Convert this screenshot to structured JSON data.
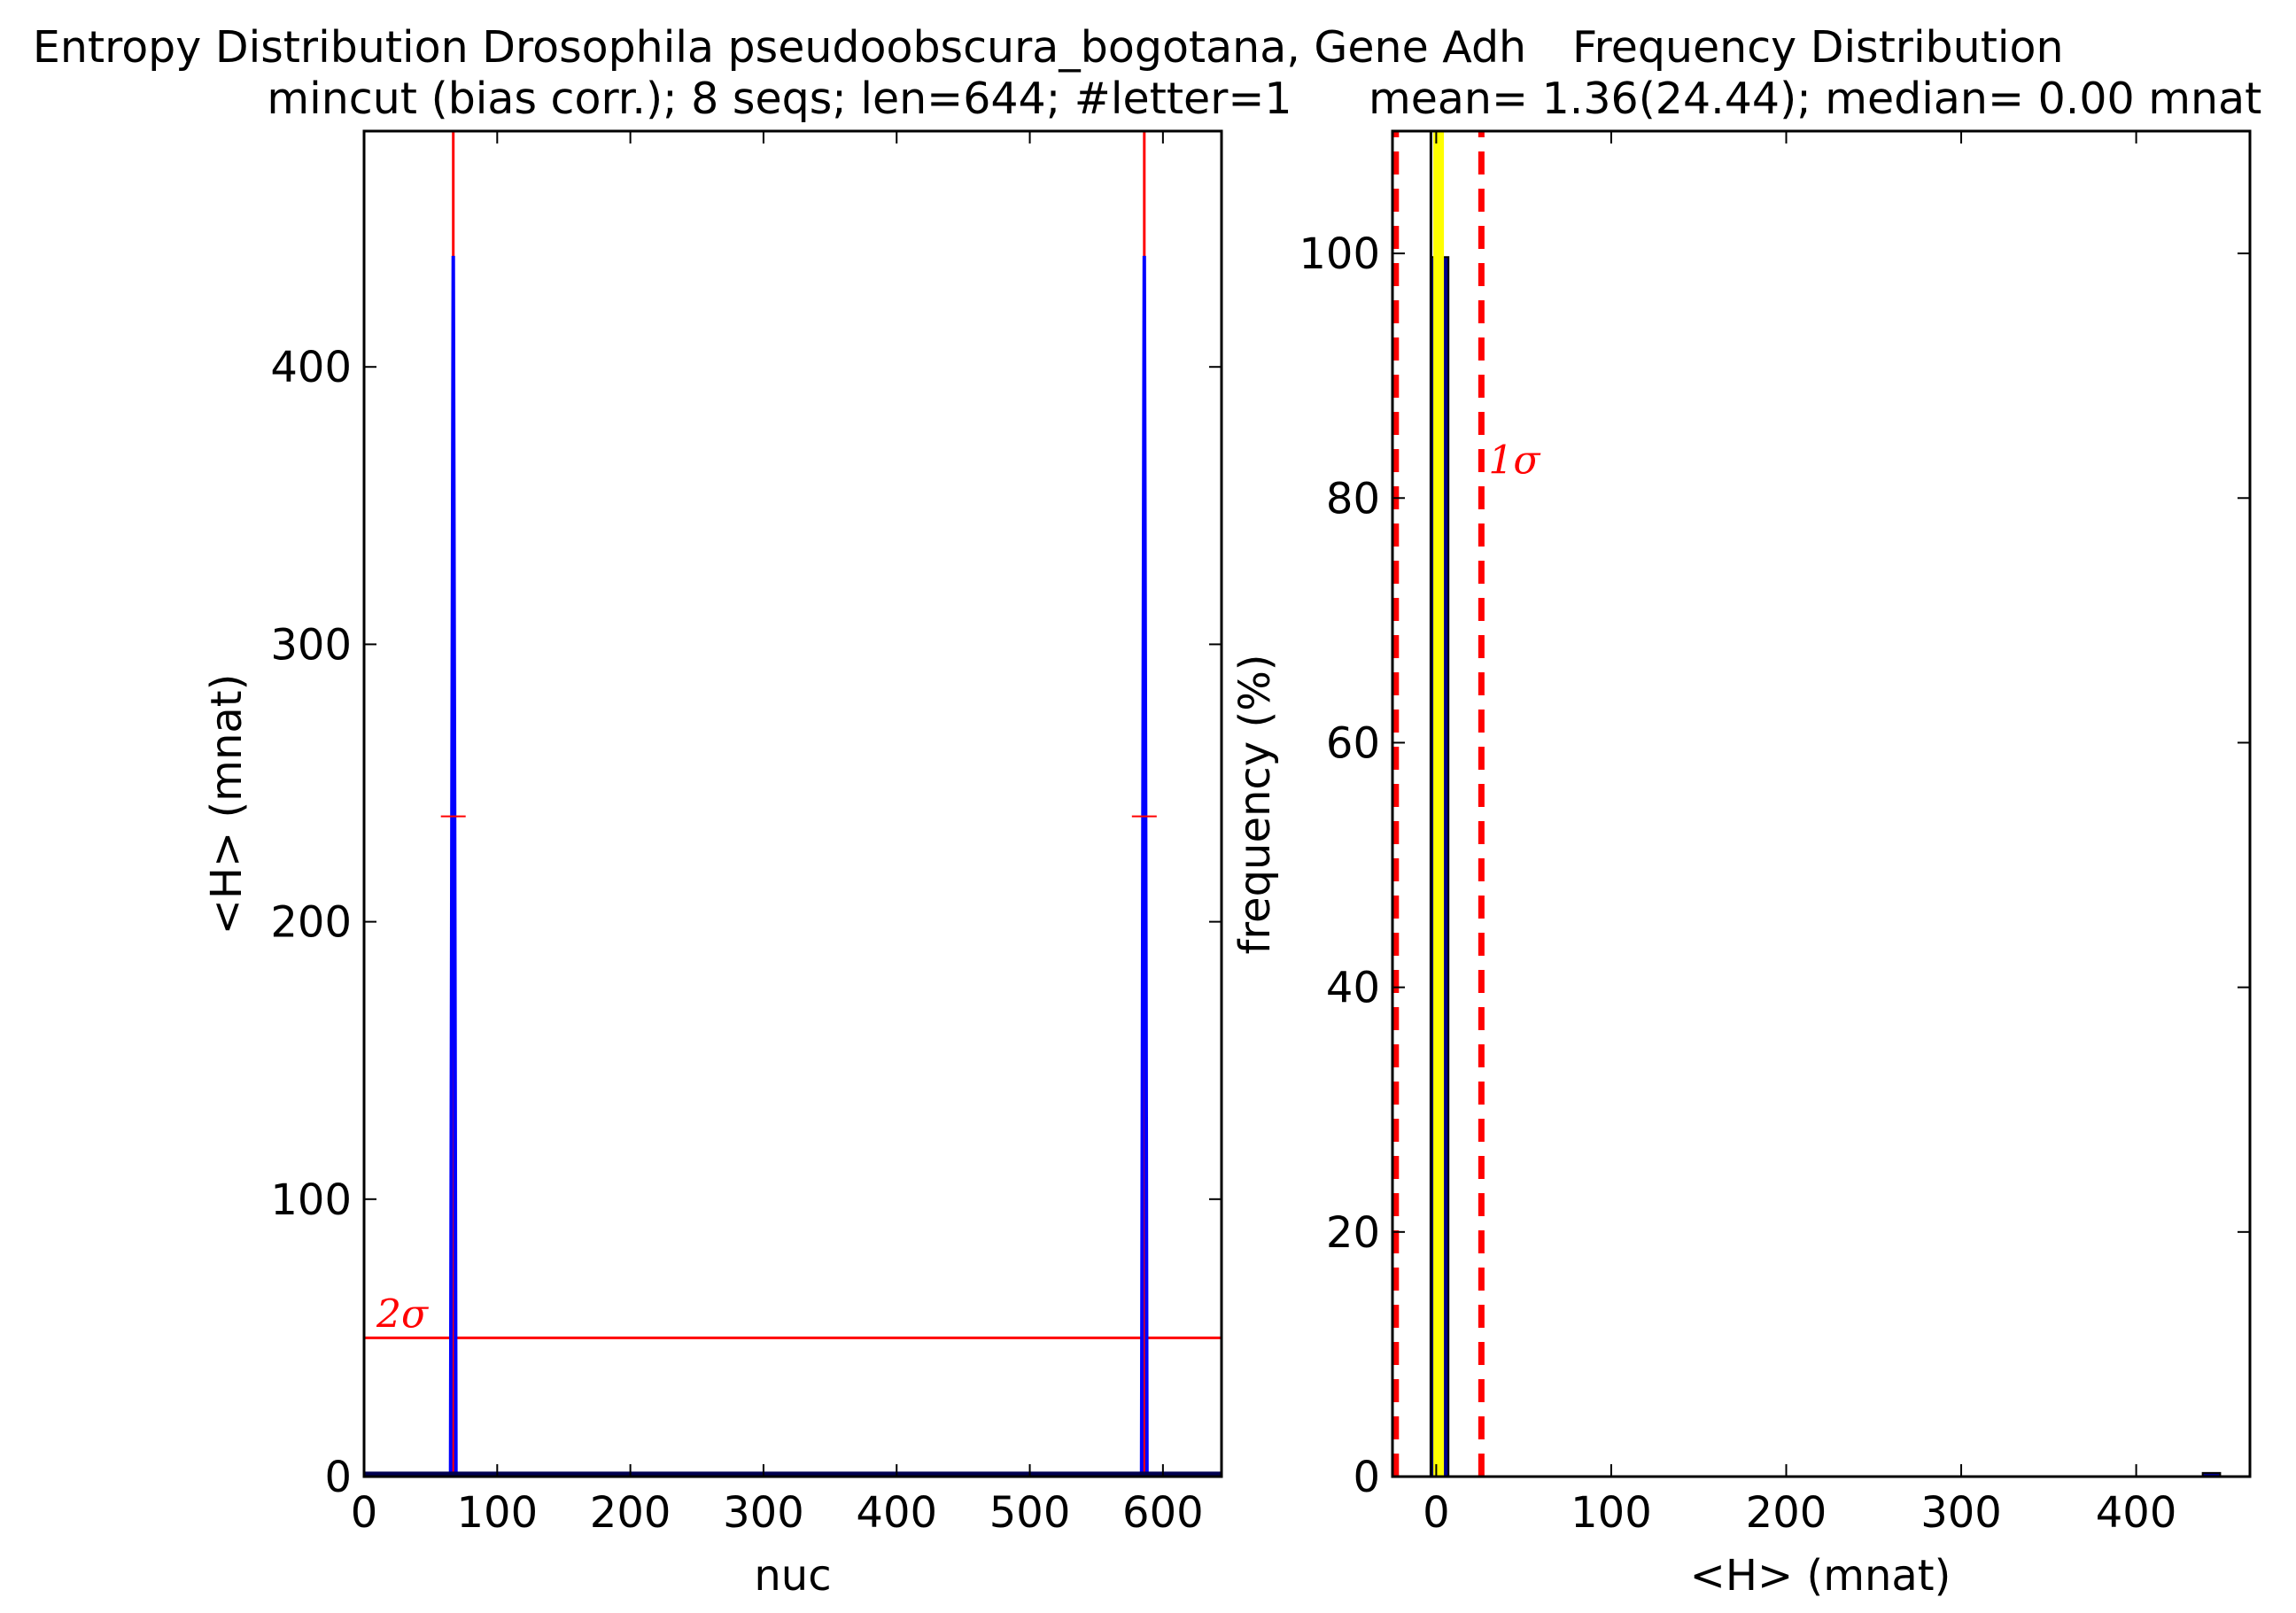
{
  "chart_data": [
    {
      "type": "line",
      "title_line1": "Entropy Distribution Drosophila pseudoobscura_bogotana, Gene Adh",
      "title_line2": "mincut (bias corr.); 8 seqs; len=644; #letter=1",
      "xlabel": "nuc",
      "ylabel": "<H> (mnat)",
      "xlim": [
        0,
        644
      ],
      "ylim": [
        0,
        485
      ],
      "xticks": [
        0,
        100,
        200,
        300,
        400,
        500,
        600
      ],
      "yticks": [
        0,
        100,
        200,
        300,
        400
      ],
      "grid": false,
      "series_color": "#0000ff",
      "threshold_color": "#ff0000",
      "x": [
        0,
        65,
        66,
        67,
        68,
        69,
        584,
        585,
        586,
        587,
        588,
        644
      ],
      "values": [
        1,
        1,
        240,
        440,
        240,
        1,
        1,
        240,
        440,
        240,
        1,
        1
      ],
      "spikes": [
        {
          "x": 67,
          "value": 440,
          "cap": 485,
          "err_mark": 238
        },
        {
          "x": 586,
          "value": 440,
          "cap": 485,
          "err_mark": 238
        }
      ],
      "threshold": {
        "value": 50,
        "label": "2σ"
      }
    },
    {
      "type": "bar",
      "title_line1": "Frequency Distribution",
      "title_line2": "mean= 1.36(24.44); median= 0.00 mnat",
      "xlabel": "<H> (mnat)",
      "ylabel": "frequency (%)",
      "xlim": [
        -25,
        465
      ],
      "ylim": [
        0,
        110
      ],
      "xticks": [
        0,
        100,
        200,
        300,
        400
      ],
      "yticks": [
        0,
        20,
        40,
        60,
        80,
        100
      ],
      "grid": false,
      "bars": [
        {
          "x0": -3,
          "x1": 7,
          "value": 99.7
        },
        {
          "x0": 438,
          "x1": 448,
          "value": 0.3
        }
      ],
      "bar_color": "#00008b",
      "mean_line": {
        "value": 1.36,
        "color": "#ffff00"
      },
      "median_line": {
        "value": 0.0,
        "color": "#000000"
      },
      "sigma_lines": [
        -23.08,
        25.8
      ],
      "sigma_label": "1σ"
    }
  ]
}
